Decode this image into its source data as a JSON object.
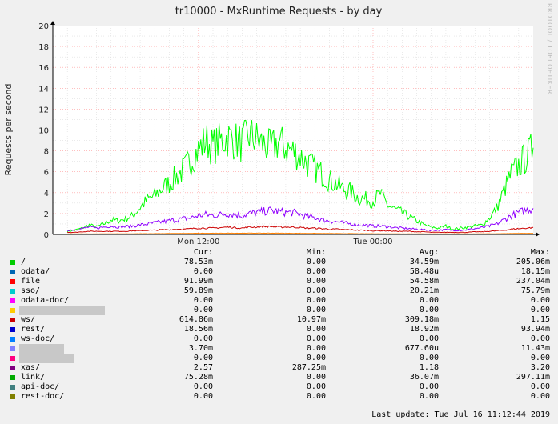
{
  "chart_data": {
    "type": "line",
    "title": "tr10000 - MxRuntime Requests - by day",
    "ylabel": "Requests per second",
    "xlabel": "",
    "ylim": [
      0,
      20
    ],
    "yticks": [
      "0",
      "2",
      "4",
      "6",
      "8",
      "10",
      "12",
      "14",
      "16",
      "18",
      "20"
    ],
    "xticks": [
      "Mon 12:00",
      "Tue 00:00"
    ],
    "watermark": "RRDTOOL / TOBI OETIKER",
    "grid": true,
    "x_hours": [
      0,
      0.5,
      1,
      1.5,
      2,
      2.5,
      3,
      3.5,
      4,
      4.5,
      5,
      5.5,
      6,
      6.5,
      7,
      7.5,
      8,
      8.5,
      9,
      9.5,
      10,
      10.5,
      11,
      11.5,
      12,
      12.5,
      13,
      13.5,
      14,
      14.5,
      15,
      15.5,
      16,
      16.5,
      17,
      17.5,
      18,
      18.5,
      19,
      19.5,
      20,
      20.5,
      21,
      21.5,
      22,
      22.5,
      23,
      23.5,
      24,
      24.5,
      25,
      25.5,
      26,
      26.5,
      27,
      27.5,
      28,
      28.5,
      29,
      29.5,
      30,
      30.5,
      31,
      31.5,
      32
    ],
    "series": [
      {
        "color": "#00ff00",
        "values": [
          0.3,
          0.4,
          0.6,
          0.9,
          0.7,
          1.0,
          1.4,
          1.3,
          1.5,
          1.8,
          2.6,
          3.3,
          3.7,
          4.4,
          4.9,
          5.6,
          6.2,
          7.2,
          8.1,
          9.0,
          8.4,
          8.9,
          9.3,
          9.0,
          8.7,
          9.5,
          9.1,
          8.6,
          8.2,
          8.9,
          8.3,
          8.0,
          7.5,
          6.8,
          6.3,
          5.8,
          5.2,
          4.8,
          4.3,
          4.1,
          3.5,
          3.4,
          3.2,
          3.9,
          2.8,
          2.4,
          2.1,
          1.7,
          1.3,
          0.9,
          0.7,
          0.6,
          0.8,
          0.5,
          0.6,
          0.7,
          0.8,
          0.9,
          1.6,
          2.5,
          4.2,
          5.8,
          6.6,
          7.4,
          8.3
        ]
      },
      {
        "color": "#8f00ff",
        "values": [
          0.4,
          0.45,
          0.55,
          0.7,
          0.6,
          0.7,
          0.8,
          0.7,
          0.75,
          0.8,
          0.9,
          1.0,
          1.1,
          1.2,
          1.3,
          1.4,
          1.5,
          1.6,
          1.8,
          1.9,
          1.8,
          1.9,
          2.0,
          1.9,
          1.8,
          2.0,
          2.1,
          2.2,
          2.3,
          2.2,
          2.1,
          2.1,
          1.9,
          1.7,
          1.6,
          1.4,
          1.3,
          1.2,
          1.1,
          1.0,
          0.9,
          0.9,
          0.8,
          0.8,
          0.75,
          0.65,
          0.6,
          0.55,
          0.5,
          0.45,
          0.4,
          0.4,
          0.45,
          0.4,
          0.4,
          0.45,
          0.55,
          0.65,
          0.8,
          1.0,
          1.4,
          1.8,
          2.1,
          2.3,
          2.5
        ]
      },
      {
        "color": "#cc0000",
        "values": [
          0.2,
          0.2,
          0.25,
          0.3,
          0.3,
          0.3,
          0.3,
          0.3,
          0.3,
          0.35,
          0.35,
          0.4,
          0.4,
          0.45,
          0.45,
          0.5,
          0.5,
          0.55,
          0.6,
          0.6,
          0.6,
          0.65,
          0.7,
          0.65,
          0.6,
          0.7,
          0.7,
          0.75,
          0.75,
          0.7,
          0.7,
          0.7,
          0.65,
          0.6,
          0.6,
          0.55,
          0.5,
          0.5,
          0.45,
          0.45,
          0.4,
          0.4,
          0.35,
          0.35,
          0.35,
          0.3,
          0.3,
          0.3,
          0.25,
          0.25,
          0.2,
          0.2,
          0.2,
          0.2,
          0.2,
          0.2,
          0.25,
          0.25,
          0.3,
          0.35,
          0.4,
          0.5,
          0.55,
          0.6,
          0.65
        ]
      },
      {
        "color": "#ff8000",
        "values": [
          0.05,
          0.05,
          0.05,
          0.05,
          0.05,
          0.05,
          0.06,
          0.06,
          0.06,
          0.06,
          0.07,
          0.07,
          0.08,
          0.08,
          0.09,
          0.09,
          0.1,
          0.1,
          0.11,
          0.11,
          0.11,
          0.11,
          0.12,
          0.12,
          0.12,
          0.12,
          0.12,
          0.12,
          0.12,
          0.12,
          0.11,
          0.11,
          0.11,
          0.1,
          0.1,
          0.09,
          0.09,
          0.08,
          0.08,
          0.08,
          0.07,
          0.07,
          0.07,
          0.06,
          0.06,
          0.06,
          0.05,
          0.05,
          0.05,
          0.05,
          0.05,
          0.05,
          0.05,
          0.05,
          0.05,
          0.05,
          0.05,
          0.06,
          0.06,
          0.07,
          0.08,
          0.09,
          0.1,
          0.1,
          0.1
        ]
      }
    ]
  },
  "legend": {
    "headers": {
      "cur": "Cur:",
      "min": "Min:",
      "avg": "Avg:",
      "max": "Max:"
    },
    "rows": [
      {
        "name": "/",
        "color": "#00cc00",
        "cur": "78.53m",
        "min": "0.00",
        "avg": "34.59m",
        "max": "205.06m"
      },
      {
        "name": "odata/",
        "color": "#0066b3",
        "cur": "0.00",
        "min": "0.00",
        "avg": "58.48u",
        "max": "18.15m"
      },
      {
        "name": "file",
        "color": "#ff0000",
        "cur": "91.99m",
        "min": "0.00",
        "avg": "54.58m",
        "max": "237.04m"
      },
      {
        "name": "sso/",
        "color": "#00cccc",
        "cur": "59.89m",
        "min": "0.00",
        "avg": "20.21m",
        "max": "75.79m"
      },
      {
        "name": "odata-doc/",
        "color": "#ff00ff",
        "cur": "0.00",
        "min": "0.00",
        "avg": "0.00",
        "max": "0.00"
      },
      {
        "name": "",
        "redacted": true,
        "redact_width": 107,
        "color": "#ffcc00",
        "cur": "0.00",
        "min": "0.00",
        "avg": "0.00",
        "max": "0.00"
      },
      {
        "name": "ws/",
        "color": "#cc0000",
        "cur": "614.86m",
        "min": "10.97m",
        "avg": "309.18m",
        "max": "1.15"
      },
      {
        "name": "rest/",
        "color": "#0000cc",
        "cur": "18.56m",
        "min": "0.00",
        "avg": "18.92m",
        "max": "93.94m"
      },
      {
        "name": "ws-doc/",
        "color": "#0080ff",
        "cur": "0.00",
        "min": "0.00",
        "avg": "0.00",
        "max": "0.00"
      },
      {
        "name": "",
        "redacted": true,
        "redact_width": 56,
        "color": "#8080ff",
        "cur": "3.70m",
        "min": "0.00",
        "avg": "677.60u",
        "max": "11.43m"
      },
      {
        "name": "",
        "redacted": true,
        "redact_width": 69,
        "color": "#ff0080",
        "cur": "0.00",
        "min": "0.00",
        "avg": "0.00",
        "max": "0.00"
      },
      {
        "name": "xas/",
        "color": "#800080",
        "cur": "2.57",
        "min": "287.25m",
        "avg": "1.18",
        "max": "3.20"
      },
      {
        "name": "link/",
        "color": "#00aa00",
        "cur": "75.28m",
        "min": "0.00",
        "avg": "36.07m",
        "max": "297.11m"
      },
      {
        "name": "api-doc/",
        "color": "#408080",
        "cur": "0.00",
        "min": "0.00",
        "avg": "0.00",
        "max": "0.00"
      },
      {
        "name": "rest-doc/",
        "color": "#808000",
        "cur": "0.00",
        "min": "0.00",
        "avg": "0.00",
        "max": "0.00"
      }
    ]
  },
  "last_update": "Last update:  Tue Jul 16 11:12:44 2019"
}
